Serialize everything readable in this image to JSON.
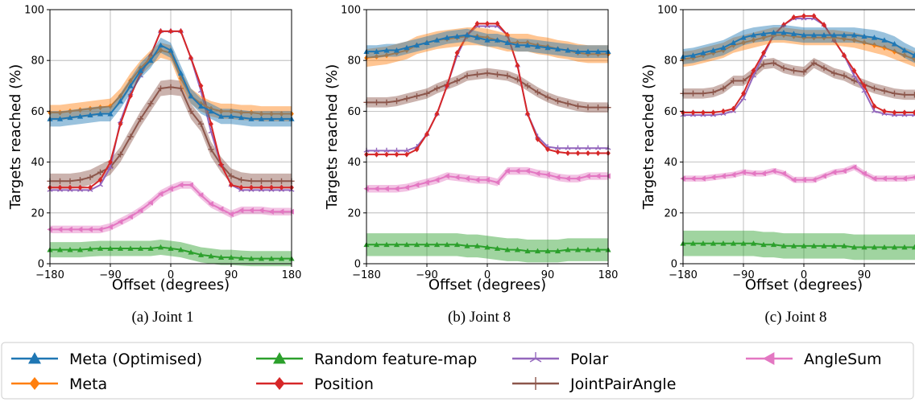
{
  "chart_data": {
    "type": "line",
    "xlabel": "Offset (degrees)",
    "ylabel": "Targets reached (%)",
    "xlim": [
      -180,
      180
    ],
    "ylim": [
      0,
      100
    ],
    "xticks": [
      -180,
      -90,
      0,
      90,
      180
    ],
    "yticks": [
      0,
      20,
      40,
      60,
      80,
      100
    ],
    "grid": true,
    "legend_position": "bottom",
    "x": [
      -180,
      -165,
      -150,
      -135,
      -120,
      -105,
      -90,
      -75,
      -60,
      -45,
      -30,
      -15,
      0,
      15,
      30,
      45,
      60,
      75,
      90,
      105,
      120,
      135,
      150,
      165,
      180
    ],
    "series_styles": [
      {
        "name": "Meta (Optimised)",
        "color": "#1f77b4",
        "marker": "triangle-up"
      },
      {
        "name": "Meta",
        "color": "#ff7f0e",
        "marker": "diamond"
      },
      {
        "name": "Random feature-map",
        "color": "#2ca02c",
        "marker": "triangle-up"
      },
      {
        "name": "Position",
        "color": "#d62728",
        "marker": "diamond"
      },
      {
        "name": "Polar",
        "color": "#9467bd",
        "marker": "star"
      },
      {
        "name": "JointPairAngle",
        "color": "#8c564b",
        "marker": "plus"
      },
      {
        "name": "AngleSum",
        "color": "#e377c2",
        "marker": "triangle-left"
      }
    ],
    "panels": [
      {
        "caption": "(a)  Joint 1",
        "series": [
          {
            "name": "Meta (Optimised)",
            "band": 3,
            "values": [
              57,
              57,
              57.5,
              58,
              58.5,
              59,
              59,
              64,
              70,
              76,
              80,
              86,
              84,
              75,
              66,
              62,
              60,
              58,
              58,
              57.5,
              57,
              57,
              57,
              57,
              57
            ]
          },
          {
            "name": "Meta",
            "band": 3,
            "values": [
              59.5,
              59.5,
              60,
              60.5,
              61,
              61.5,
              62,
              66,
              72,
              77,
              81,
              84,
              83,
              73,
              66,
              63,
              61,
              60,
              60,
              59.5,
              59.5,
              59,
              59,
              59,
              59
            ]
          },
          {
            "name": "Random feature-map",
            "band": 3,
            "values": [
              5.5,
              5.5,
              5.5,
              5.5,
              5.8,
              6,
              6,
              6,
              6,
              6,
              6,
              6.5,
              6,
              5.5,
              4.5,
              3.5,
              3,
              2.5,
              2.5,
              2.2,
              2,
              2,
              2,
              2,
              2
            ]
          },
          {
            "name": "Position",
            "band": 0,
            "values": [
              30,
              30,
              30,
              30,
              30,
              33,
              40,
              55,
              66,
              75,
              82,
              91.5,
              91.5,
              91.5,
              81,
              70,
              55,
              39,
              31,
              30,
              30,
              30,
              30,
              30,
              30
            ]
          },
          {
            "name": "Polar",
            "band": 0,
            "values": [
              29,
              29,
              29,
              29,
              29,
              31,
              38,
              56,
              67,
              74,
              82,
              91.5,
              91.5,
              91.5,
              81,
              68,
              52,
              39,
              31,
              29,
              29,
              29,
              29,
              29,
              29
            ]
          },
          {
            "name": "JointPairAngle",
            "band": 3,
            "values": [
              32.5,
              32.5,
              32.5,
              33,
              34,
              36,
              38,
              43,
              50,
              57,
              63,
              69,
              69.5,
              69,
              60,
              55,
              45,
              39,
              34.5,
              33,
              32.5,
              32.5,
              32.5,
              32.5,
              32.5
            ]
          },
          {
            "name": "AngleSum",
            "band": 1.5,
            "values": [
              13.5,
              13.5,
              13.5,
              13.5,
              13.5,
              13.5,
              14.5,
              16.5,
              18.5,
              21,
              24,
              27.5,
              29.5,
              31,
              31,
              27,
              23.5,
              21.5,
              19.5,
              21,
              21,
              21,
              20.5,
              20.5,
              20.5
            ]
          }
        ]
      },
      {
        "caption": "(b)  Joint 8",
        "series": [
          {
            "name": "Meta (Optimised)",
            "band": 2.5,
            "values": [
              83.5,
              83.5,
              84,
              84,
              85,
              86,
              87,
              88,
              89,
              89.5,
              90,
              89,
              88,
              88,
              87,
              86,
              86,
              85.5,
              85,
              84.5,
              84,
              83.5,
              83.5,
              83.5,
              83.5
            ]
          },
          {
            "name": "Meta",
            "band": 3.5,
            "values": [
              81,
              81.5,
              82,
              83,
              84,
              86,
              87,
              88,
              88.5,
              89,
              89.5,
              89.5,
              89,
              88,
              87,
              87,
              87,
              86,
              85.5,
              84.5,
              84,
              83,
              82.5,
              82.5,
              82.5
            ]
          },
          {
            "name": "Random feature-map",
            "band": 4.5,
            "values": [
              7.5,
              7.5,
              7.5,
              7.5,
              7.5,
              7.5,
              7.5,
              7.5,
              7.5,
              7.5,
              7,
              7,
              6.5,
              6,
              5.5,
              5.5,
              5,
              5,
              5,
              5,
              5.5,
              5.5,
              5.5,
              5.5,
              5.5
            ]
          },
          {
            "name": "Position",
            "band": 0,
            "values": [
              43,
              43,
              43,
              43,
              43,
              45,
              51,
              59,
              70,
              83,
              90,
              94.5,
              94.5,
              94.5,
              90,
              78,
              59,
              49,
              45,
              44,
              43.5,
              43.5,
              43.5,
              43.5,
              43.5
            ]
          },
          {
            "name": "Polar",
            "band": 0,
            "values": [
              44.5,
              44.5,
              44.5,
              44.5,
              44.5,
              46,
              51,
              59,
              70,
              82,
              90,
              93.5,
              93.5,
              93.5,
              90,
              78,
              59,
              50,
              46,
              45.5,
              45.5,
              45.5,
              45.5,
              45.5,
              45.5
            ]
          },
          {
            "name": "JointPairAngle",
            "band": 2,
            "values": [
              63.5,
              63.5,
              63.5,
              64,
              65,
              66,
              67,
              69,
              70.5,
              72,
              74,
              74.5,
              75,
              74.5,
              74,
              72.5,
              70,
              67.5,
              65.5,
              64,
              63,
              62,
              61.5,
              61.5,
              61.5
            ]
          },
          {
            "name": "AngleSum",
            "band": 1.5,
            "values": [
              29.5,
              29.5,
              29.5,
              29.5,
              30,
              31,
              32,
              33,
              34.5,
              34,
              33.5,
              33,
              33,
              32,
              36.5,
              36.5,
              36.5,
              35.5,
              35,
              34,
              33.5,
              33.5,
              34.5,
              34.5,
              34.5
            ]
          }
        ]
      },
      {
        "caption": "(c)  Joint 8",
        "series": [
          {
            "name": "Meta (Optimised)",
            "band": 3,
            "values": [
              81.5,
              82,
              83,
              84,
              85,
              87,
              89,
              90,
              90.5,
              91,
              91,
              90.5,
              90,
              90,
              90,
              90,
              90,
              90,
              89.5,
              89,
              88,
              86.5,
              84,
              82,
              80.5
            ]
          },
          {
            "name": "Meta",
            "band": 3,
            "values": [
              80.5,
              81,
              82,
              83,
              84,
              86,
              87,
              88,
              89,
              90,
              90,
              89.5,
              89,
              89,
              89,
              89,
              88.5,
              88,
              87,
              86,
              85,
              83.5,
              82,
              80.5,
              79.5
            ]
          },
          {
            "name": "Random feature-map",
            "band": 5,
            "values": [
              8,
              8,
              8,
              8,
              8,
              8,
              8,
              8,
              7.5,
              7.5,
              7,
              7,
              7,
              7,
              7,
              7,
              7,
              6.5,
              6.5,
              6.5,
              6.5,
              6.5,
              6.5,
              6.5,
              6.5
            ]
          },
          {
            "name": "Position",
            "band": 0,
            "values": [
              59.5,
              59.5,
              59.5,
              59.5,
              60,
              61,
              67,
              76,
              83,
              90,
              94,
              97,
              97.5,
              97.5,
              94,
              88,
              82,
              76,
              70,
              62,
              60,
              59.5,
              59.5,
              59.5,
              59.5
            ]
          },
          {
            "name": "Polar",
            "band": 0,
            "values": [
              58.5,
              58.5,
              58.5,
              58.5,
              59,
              60,
              65,
              74,
              82,
              90,
              94,
              96.5,
              96.5,
              96.5,
              94,
              88,
              82,
              74,
              68,
              60,
              59,
              58.5,
              58.5,
              58.5,
              58.5
            ]
          },
          {
            "name": "JointPairAngle",
            "band": 2,
            "values": [
              67,
              67,
              67,
              67.5,
              69,
              72,
              72,
              75,
              78.5,
              79,
              77,
              76,
              75.5,
              79,
              77,
              75,
              74,
              72,
              70.5,
              69,
              68,
              67,
              66.5,
              66.5,
              66.5
            ]
          },
          {
            "name": "AngleSum",
            "band": 1.2,
            "values": [
              33.5,
              33.5,
              33.5,
              34,
              34.5,
              35,
              36,
              35.5,
              35.5,
              36.5,
              35.5,
              33,
              33,
              33,
              34.5,
              36,
              36.5,
              38,
              35.5,
              33.5,
              33.5,
              33.5,
              33.5,
              34,
              34
            ]
          }
        ]
      }
    ]
  }
}
